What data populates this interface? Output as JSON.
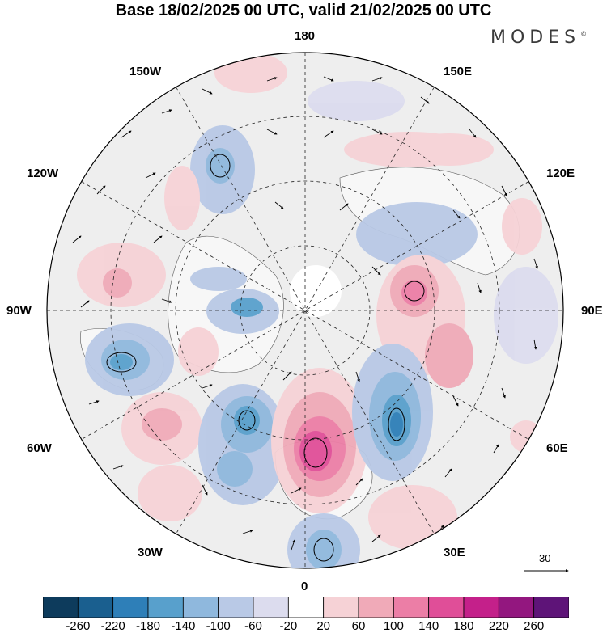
{
  "title": "Base 18/02/2025 00 UTC, valid 21/02/2025 00 UTC",
  "brand": "MODES",
  "brand_mark": "©",
  "longitude_labels": {
    "lon_180": "180",
    "lon_150w": "150W",
    "lon_150e": "150E",
    "lon_120w": "120W",
    "lon_120e": "120E",
    "lon_90w": "90W",
    "lon_90e": "90E",
    "lon_60w": "60W",
    "lon_60e": "60E",
    "lon_30w": "30W",
    "lon_30e": "30E",
    "lon_0": "0"
  },
  "vector_scale_label": "30",
  "colorbar": {
    "colors": [
      "#0d3b5c",
      "#1a5f8f",
      "#2e7fb8",
      "#58a0cc",
      "#8fb8dd",
      "#b9c9e6",
      "#dcdcee",
      "#ffffff",
      "#f6d2d6",
      "#f0aab8",
      "#ec7ea6",
      "#e04e98",
      "#c4208a",
      "#93177f",
      "#5e1478"
    ],
    "labels": [
      "-260",
      "-220",
      "-180",
      "-140",
      "-100",
      "-60",
      "-20",
      "20",
      "60",
      "100",
      "140",
      "180",
      "220",
      "260"
    ]
  }
}
